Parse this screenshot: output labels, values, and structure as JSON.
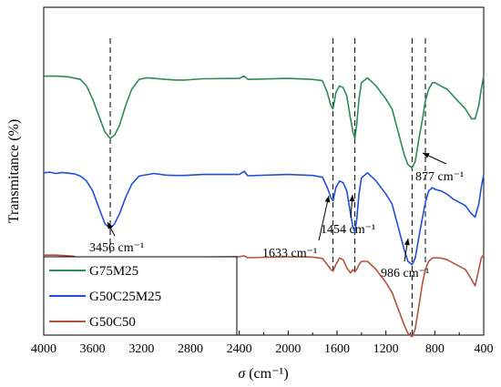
{
  "chart_data": {
    "type": "line",
    "xlabel_symbol": "σ",
    "xlabel_unit": " (cm⁻¹)",
    "ylabel": "Transmitance (%)",
    "xlim": [
      4000,
      400
    ],
    "x_reversed": true,
    "x_ticks": [
      4000,
      3600,
      3200,
      2800,
      2400,
      2000,
      1600,
      1200,
      800,
      400
    ],
    "y_ticks_shown": false,
    "grid": false,
    "legend_position": "bottom-left",
    "series": [
      {
        "name": "G75M25",
        "color": "#2e8b57",
        "points": [
          [
            4000,
            0.79
          ],
          [
            3900,
            0.79
          ],
          [
            3800,
            0.788
          ],
          [
            3700,
            0.78
          ],
          [
            3650,
            0.76
          ],
          [
            3600,
            0.72
          ],
          [
            3550,
            0.67
          ],
          [
            3500,
            0.62
          ],
          [
            3456,
            0.6
          ],
          [
            3420,
            0.61
          ],
          [
            3380,
            0.64
          ],
          [
            3330,
            0.7
          ],
          [
            3280,
            0.75
          ],
          [
            3220,
            0.78
          ],
          [
            3150,
            0.785
          ],
          [
            3000,
            0.78
          ],
          [
            2920,
            0.778
          ],
          [
            2850,
            0.778
          ],
          [
            2700,
            0.782
          ],
          [
            2400,
            0.783
          ],
          [
            2360,
            0.79
          ],
          [
            2330,
            0.78
          ],
          [
            2000,
            0.783
          ],
          [
            1800,
            0.78
          ],
          [
            1720,
            0.776
          ],
          [
            1680,
            0.74
          ],
          [
            1650,
            0.7
          ],
          [
            1633,
            0.69
          ],
          [
            1610,
            0.74
          ],
          [
            1580,
            0.76
          ],
          [
            1550,
            0.755
          ],
          [
            1520,
            0.73
          ],
          [
            1490,
            0.66
          ],
          [
            1470,
            0.62
          ],
          [
            1454,
            0.6
          ],
          [
            1440,
            0.64
          ],
          [
            1420,
            0.72
          ],
          [
            1400,
            0.77
          ],
          [
            1350,
            0.785
          ],
          [
            1280,
            0.76
          ],
          [
            1200,
            0.72
          ],
          [
            1150,
            0.69
          ],
          [
            1100,
            0.62
          ],
          [
            1050,
            0.55
          ],
          [
            1020,
            0.52
          ],
          [
            986,
            0.51
          ],
          [
            960,
            0.53
          ],
          [
            930,
            0.6
          ],
          [
            900,
            0.66
          ],
          [
            877,
            0.715
          ],
          [
            850,
            0.75
          ],
          [
            820,
            0.77
          ],
          [
            800,
            0.77
          ],
          [
            750,
            0.76
          ],
          [
            700,
            0.75
          ],
          [
            650,
            0.73
          ],
          [
            600,
            0.71
          ],
          [
            550,
            0.69
          ],
          [
            500,
            0.66
          ],
          [
            470,
            0.66
          ],
          [
            440,
            0.7
          ],
          [
            420,
            0.75
          ],
          [
            400,
            0.79
          ]
        ]
      },
      {
        "name": "G50C25M25",
        "color": "#1f4fd8",
        "points": [
          [
            4000,
            0.495
          ],
          [
            3950,
            0.497
          ],
          [
            3900,
            0.493
          ],
          [
            3850,
            0.496
          ],
          [
            3800,
            0.494
          ],
          [
            3750,
            0.492
          ],
          [
            3700,
            0.485
          ],
          [
            3650,
            0.47
          ],
          [
            3600,
            0.44
          ],
          [
            3550,
            0.39
          ],
          [
            3500,
            0.34
          ],
          [
            3456,
            0.325
          ],
          [
            3420,
            0.34
          ],
          [
            3380,
            0.37
          ],
          [
            3330,
            0.42
          ],
          [
            3280,
            0.46
          ],
          [
            3220,
            0.485
          ],
          [
            3100,
            0.493
          ],
          [
            3000,
            0.488
          ],
          [
            2920,
            0.487
          ],
          [
            2850,
            0.487
          ],
          [
            2700,
            0.49
          ],
          [
            2400,
            0.49
          ],
          [
            2360,
            0.5
          ],
          [
            2330,
            0.486
          ],
          [
            2000,
            0.49
          ],
          [
            1800,
            0.487
          ],
          [
            1720,
            0.482
          ],
          [
            1680,
            0.45
          ],
          [
            1650,
            0.42
          ],
          [
            1633,
            0.41
          ],
          [
            1610,
            0.45
          ],
          [
            1580,
            0.47
          ],
          [
            1550,
            0.465
          ],
          [
            1520,
            0.44
          ],
          [
            1490,
            0.37
          ],
          [
            1470,
            0.33
          ],
          [
            1454,
            0.315
          ],
          [
            1440,
            0.35
          ],
          [
            1420,
            0.43
          ],
          [
            1400,
            0.48
          ],
          [
            1350,
            0.495
          ],
          [
            1280,
            0.47
          ],
          [
            1200,
            0.43
          ],
          [
            1150,
            0.4
          ],
          [
            1100,
            0.33
          ],
          [
            1050,
            0.26
          ],
          [
            1020,
            0.225
          ],
          [
            986,
            0.215
          ],
          [
            960,
            0.235
          ],
          [
            930,
            0.3
          ],
          [
            900,
            0.36
          ],
          [
            877,
            0.405
          ],
          [
            850,
            0.44
          ],
          [
            820,
            0.45
          ],
          [
            800,
            0.445
          ],
          [
            750,
            0.44
          ],
          [
            700,
            0.43
          ],
          [
            650,
            0.415
          ],
          [
            600,
            0.405
          ],
          [
            550,
            0.395
          ],
          [
            500,
            0.37
          ],
          [
            470,
            0.36
          ],
          [
            440,
            0.4
          ],
          [
            420,
            0.45
          ],
          [
            400,
            0.49
          ]
        ]
      },
      {
        "name": "G50C50",
        "color": "#b5523b",
        "points": [
          [
            4000,
            0.244
          ],
          [
            3900,
            0.244
          ],
          [
            3800,
            0.242
          ],
          [
            3750,
            0.24
          ],
          [
            3700,
            0.232
          ],
          [
            3650,
            0.215
          ],
          [
            3600,
            0.18
          ],
          [
            3550,
            0.13
          ],
          [
            3500,
            0.08
          ],
          [
            3456,
            0.055
          ],
          [
            3420,
            0.06
          ],
          [
            3380,
            0.09
          ],
          [
            3330,
            0.14
          ],
          [
            3280,
            0.19
          ],
          [
            3220,
            0.22
          ],
          [
            3150,
            0.238
          ],
          [
            3000,
            0.236
          ],
          [
            2920,
            0.235
          ],
          [
            2850,
            0.235
          ],
          [
            2700,
            0.238
          ],
          [
            2400,
            0.239
          ],
          [
            2360,
            0.242
          ],
          [
            2330,
            0.236
          ],
          [
            2000,
            0.239
          ],
          [
            1800,
            0.238
          ],
          [
            1720,
            0.234
          ],
          [
            1680,
            0.215
          ],
          [
            1650,
            0.2
          ],
          [
            1633,
            0.195
          ],
          [
            1610,
            0.215
          ],
          [
            1580,
            0.235
          ],
          [
            1550,
            0.23
          ],
          [
            1520,
            0.205
          ],
          [
            1490,
            0.19
          ],
          [
            1470,
            0.2
          ],
          [
            1454,
            0.193
          ],
          [
            1440,
            0.2
          ],
          [
            1420,
            0.215
          ],
          [
            1400,
            0.225
          ],
          [
            1350,
            0.225
          ],
          [
            1280,
            0.2
          ],
          [
            1200,
            0.16
          ],
          [
            1150,
            0.13
          ],
          [
            1100,
            0.08
          ],
          [
            1050,
            0.03
          ],
          [
            1020,
            0.005
          ],
          [
            986,
            -0.005
          ],
          [
            960,
            0.02
          ],
          [
            930,
            0.09
          ],
          [
            900,
            0.16
          ],
          [
            877,
            0.2
          ],
          [
            850,
            0.225
          ],
          [
            820,
            0.235
          ],
          [
            800,
            0.236
          ],
          [
            750,
            0.235
          ],
          [
            700,
            0.23
          ],
          [
            650,
            0.22
          ],
          [
            600,
            0.21
          ],
          [
            550,
            0.2
          ],
          [
            500,
            0.17
          ],
          [
            470,
            0.15
          ],
          [
            440,
            0.2
          ],
          [
            420,
            0.235
          ],
          [
            400,
            0.245
          ]
        ]
      }
    ],
    "annotations": [
      {
        "label": "3456 cm⁻¹",
        "x": 3456
      },
      {
        "label": "1633 cm⁻¹",
        "x": 1633
      },
      {
        "label": "1454 cm⁻¹",
        "x": 1454
      },
      {
        "label": "986 cm⁻¹",
        "x": 986
      },
      {
        "label": "877 cm⁻¹",
        "x": 877
      }
    ]
  }
}
